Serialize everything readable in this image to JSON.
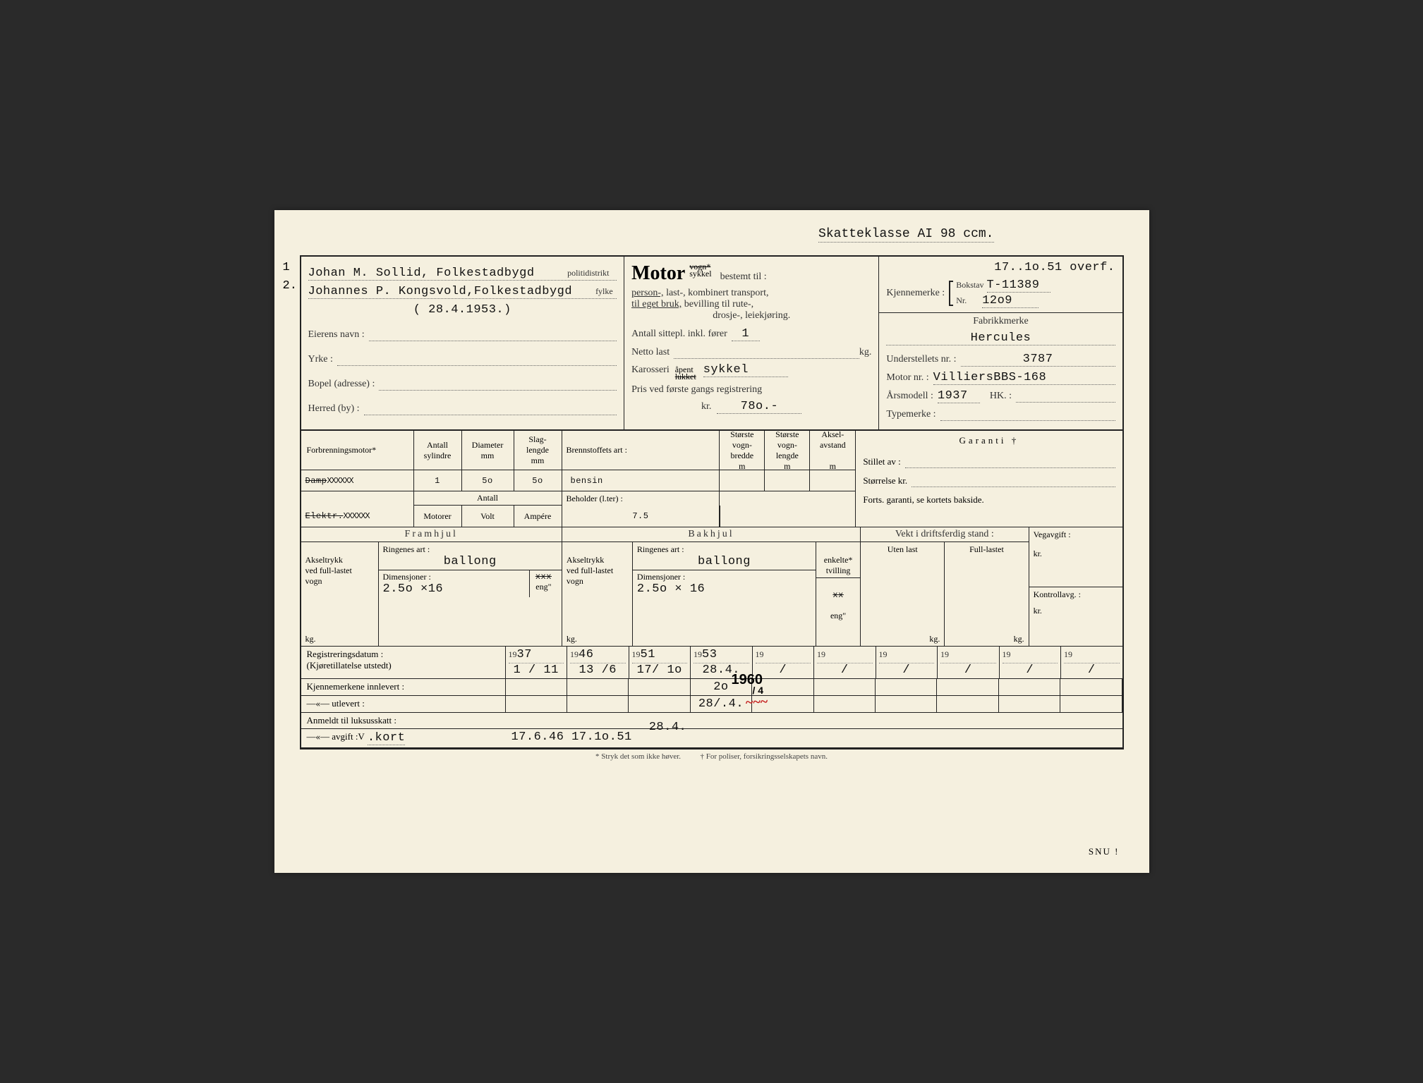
{
  "taxClass": "Skatteklasse AI 98 ccm.",
  "leftNumbers": {
    "n1": "1",
    "n2": "2."
  },
  "owner": {
    "line1": "Johan M. Sollid, Folkestadbygd",
    "line1suffix": "politidistrikt",
    "line2": "Johannes P. Kongsvold,Folkestadbygd",
    "line2suffix": "fylke",
    "line3": "( 28.4.1953.)",
    "lblName": "Eierens navn :",
    "lblYrke": "Yrke :",
    "lblBopel": "Bopel (adresse) :",
    "lblHerred": "Herred (by) :"
  },
  "motor": {
    "title": "Motor",
    "supStrike": "vogn*",
    "sub": "sykkel",
    "bestemt": "bestemt til :",
    "purpose1a": "person-,",
    "purpose1b": " last-, kombinert transport,",
    "purpose2a": "til eget bruk,",
    "purpose2b": " bevilling til rute-,",
    "purpose3": "drosje-, leiekjøring.",
    "seatsLbl": "Antall sittepl. inkl. fører",
    "seatsVal": "1",
    "netLbl": "Netto last",
    "netUnit": "kg.",
    "karoLbl": "Karosseri",
    "karoSup": "åpent",
    "karoSubStrike": "lukket",
    "karoVal": "sykkel",
    "priceLbl": "Pris ved første gangs registrering",
    "priceKr": "kr.",
    "priceVal": "78o.-"
  },
  "reg": {
    "overf": "17..1o.51 overf.",
    "kjLbl": "Kjennemerke :",
    "bokstav": "Bokstav",
    "bokstavVal": "T-11389",
    "nr": "Nr.",
    "nrVal": "12o9",
    "fabLbl": "Fabrikkmerke",
    "fabVal": "Hercules",
    "undLbl": "Understellets nr. :",
    "undVal": "3787",
    "motLbl": "Motor nr. :",
    "motVal": "VilliersBBS-168",
    "aarLbl": "Årsmodell :",
    "aarVal": "1937",
    "hkLbl": "HK. :",
    "typLbl": "Typemerke :"
  },
  "engine": {
    "forbr": "Forbrenningsmotor*",
    "dampStrike": "Damp",
    "elStrike": "Elektr.",
    "xxxxx": "XXXXXX",
    "hdrSyl": "Antall\nsylindre",
    "hdrDia": "Diameter\nmm",
    "hdrSlag": "Slag-\nlengde\nmm",
    "hdrBrenn": "Brennstoffets art :",
    "hdrBredde": "Største\nvogn-\nbredde\nm",
    "hdrLengde": "Største\nvogn-\nlengde\nm",
    "hdrAksel": "Aksel-\navstand\n\nm",
    "valSyl": "1",
    "valDia": "5o",
    "valSlag": "5o",
    "valBrenn": "bensin",
    "row2Antall": "Antall",
    "row2Mot": "Motorer",
    "row2Volt": "Volt",
    "row2Amp": "Ampére",
    "behLbl": "Beholder (l.ter) :",
    "behVal": "7.5",
    "garanti": "Garanti †",
    "stillet": "Stillet av :",
    "storr": "Størrelse kr.",
    "forts": "Forts. garanti, se kortets bakside."
  },
  "wheels": {
    "fram": "Framhjul",
    "bak": "Bakhjul",
    "aksLbl": "Akseltrykk\nved full-lastet\nvogn",
    "aksKg": "kg.",
    "ringLbl": "Ringenes art :",
    "ringVal": "ballong",
    "dimLbl": "Dimensjoner :",
    "dimVal1": "2.5o ×16",
    "dimVal2": "2.5o × 16",
    "mmStrike": "mm*",
    "mmX": "xxx",
    "eng": "eng\"",
    "enkTw": "enkelte*\ntvilling",
    "xx": "xx",
    "vektLbl": "Vekt i driftsferdig stand :",
    "uten": "Uten last",
    "full": "Full-lastet",
    "veg": "Vegavgift :",
    "kr": "kr.",
    "kontroll": "Kontrollavg. :"
  },
  "regdates": {
    "lblReg": "Registreringsdatum :\n(Kjøretillatelse utstedt)",
    "lblInn": "Kjennemerkene innlevert :",
    "lblUt": "—«—        utlevert :",
    "lblLuks": "Anmeldt til luksusskatt :",
    "lblAvg": "—«—       avgift :V",
    "avgVal": ".kort",
    "y": [
      "37",
      "46",
      "51",
      "53",
      "",
      "",
      "",
      "",
      "",
      ""
    ],
    "d": [
      "1 / 11",
      "13 /6",
      "17/ 1o",
      "28.4.",
      "/",
      "/",
      "/",
      "/",
      "/",
      "/"
    ],
    "yPrefix": "19",
    "inn4": "2o",
    "stamp": "1960",
    "stampSub": "/ 4",
    "ut4": "28/.4.",
    "avgDates": "17.6.46 17.1o.51",
    "avgExtra": "28.4."
  },
  "footer": {
    "note1": "* Stryk det som ikke høver.",
    "note2": "† For poliser, forsikringsselskapets navn.",
    "snu": "SNU !"
  }
}
